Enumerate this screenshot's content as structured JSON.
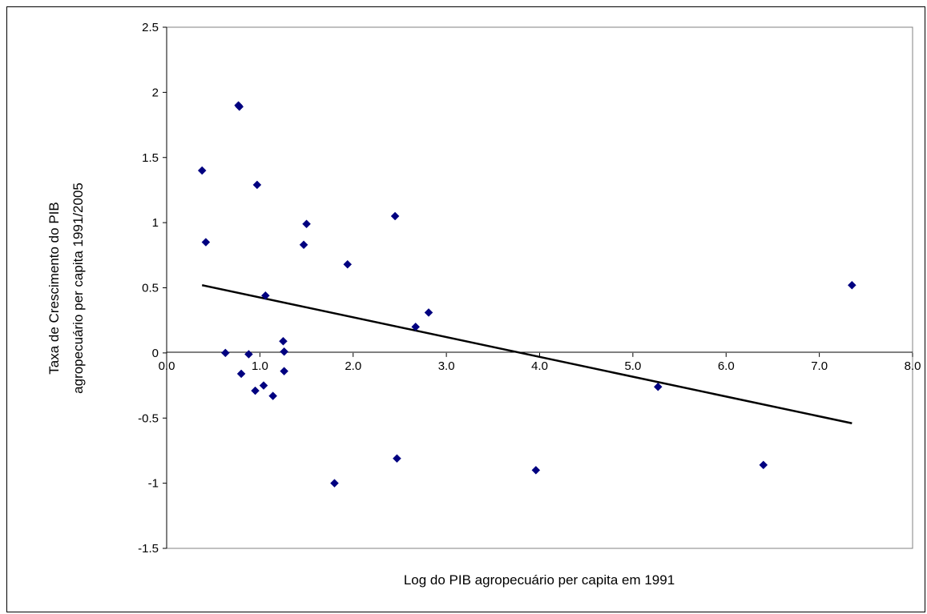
{
  "chart_data": {
    "type": "scatter",
    "title": "",
    "xlabel": "Log do PIB agropecuário per capita em 1991",
    "ylabel_lines": [
      "Taxa de Crescimento do PIB",
      "agropecuário per capita 1991/2005"
    ],
    "xlim": [
      0,
      8
    ],
    "ylim": [
      -1.5,
      2.5
    ],
    "x_ticks": [
      "0.0",
      "1.0",
      "2.0",
      "3.0",
      "4.0",
      "5.0",
      "6.0",
      "7.0",
      "8.0"
    ],
    "y_ticks": [
      "2.5",
      "2",
      "1.5",
      "1",
      "0.5",
      "0",
      "-0.5",
      "-1",
      "-1.5"
    ],
    "grid": false,
    "legend": "none",
    "marker": "diamond",
    "marker_color": "#000080",
    "trendline": {
      "x": [
        0.38,
        7.35
      ],
      "y": [
        0.52,
        -0.54
      ],
      "color": "#000000"
    },
    "points": [
      {
        "x": 0.38,
        "y": 1.4
      },
      {
        "x": 0.42,
        "y": 0.85
      },
      {
        "x": 0.63,
        "y": 0.0
      },
      {
        "x": 0.77,
        "y": 1.9
      },
      {
        "x": 0.78,
        "y": 1.89
      },
      {
        "x": 0.8,
        "y": -0.16
      },
      {
        "x": 0.88,
        "y": -0.01
      },
      {
        "x": 0.95,
        "y": -0.29
      },
      {
        "x": 0.97,
        "y": 1.29
      },
      {
        "x": 1.04,
        "y": -0.25
      },
      {
        "x": 1.06,
        "y": 0.44
      },
      {
        "x": 1.14,
        "y": -0.33
      },
      {
        "x": 1.25,
        "y": 0.09
      },
      {
        "x": 1.26,
        "y": 0.01
      },
      {
        "x": 1.26,
        "y": -0.14
      },
      {
        "x": 1.47,
        "y": 0.83
      },
      {
        "x": 1.5,
        "y": 0.99
      },
      {
        "x": 1.8,
        "y": -1.0
      },
      {
        "x": 1.94,
        "y": 0.68
      },
      {
        "x": 2.45,
        "y": 1.05
      },
      {
        "x": 2.47,
        "y": -0.81
      },
      {
        "x": 2.67,
        "y": 0.2
      },
      {
        "x": 2.81,
        "y": 0.31
      },
      {
        "x": 3.96,
        "y": -0.9
      },
      {
        "x": 5.27,
        "y": -0.26
      },
      {
        "x": 6.4,
        "y": -0.86
      },
      {
        "x": 7.35,
        "y": 0.52
      }
    ]
  }
}
